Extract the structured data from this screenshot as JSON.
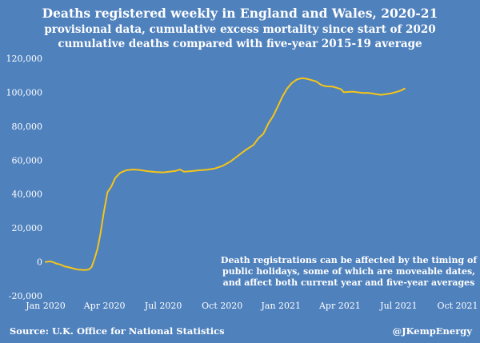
{
  "chart_data": {
    "type": "line",
    "title": "Deaths registered weekly in England and Wales, 2020-21",
    "subtitle_1": "provisional data, cumulative excess mortality since start of 2020",
    "subtitle_2": "cumulative deaths compared with five-year 2015-19 average",
    "ylim": [
      -20000,
      120000
    ],
    "y_ticks": [
      {
        "value": 120000,
        "label": "120,000"
      },
      {
        "value": 100000,
        "label": "100,000"
      },
      {
        "value": 80000,
        "label": "80,000"
      },
      {
        "value": 60000,
        "label": "60,000"
      },
      {
        "value": 40000,
        "label": "40,000"
      },
      {
        "value": 20000,
        "label": "20,000"
      },
      {
        "value": 0,
        "label": "0"
      },
      {
        "value": -20000,
        "label": "-20,000"
      }
    ],
    "x_range_months": [
      0,
      21
    ],
    "x_ticks": [
      {
        "value": 0,
        "label": "Jan 2020"
      },
      {
        "value": 3,
        "label": "Apr 2020"
      },
      {
        "value": 6,
        "label": "Jul 2020"
      },
      {
        "value": 9,
        "label": "Oct 2020"
      },
      {
        "value": 12,
        "label": "Jan 2021"
      },
      {
        "value": 15,
        "label": "Apr 2021"
      },
      {
        "value": 18,
        "label": "Jul 2021"
      },
      {
        "value": 21,
        "label": "Oct 2021"
      }
    ],
    "series": [
      {
        "name": "cumulative excess deaths",
        "color": "#f5c518",
        "points": [
          [
            0.0,
            0
          ],
          [
            0.25,
            300
          ],
          [
            0.4,
            -200
          ],
          [
            0.55,
            -1000
          ],
          [
            0.75,
            -1500
          ],
          [
            0.95,
            -2600
          ],
          [
            1.2,
            -3200
          ],
          [
            1.45,
            -4000
          ],
          [
            1.7,
            -4600
          ],
          [
            2.0,
            -4800
          ],
          [
            2.2,
            -4500
          ],
          [
            2.35,
            -3000
          ],
          [
            2.5,
            2000
          ],
          [
            2.65,
            8000
          ],
          [
            2.8,
            17000
          ],
          [
            2.95,
            28000
          ],
          [
            3.15,
            41000
          ],
          [
            3.35,
            44500
          ],
          [
            3.55,
            49500
          ],
          [
            3.8,
            52500
          ],
          [
            4.1,
            54000
          ],
          [
            4.45,
            54500
          ],
          [
            4.8,
            54200
          ],
          [
            5.2,
            53500
          ],
          [
            5.6,
            53000
          ],
          [
            6.0,
            52800
          ],
          [
            6.3,
            53200
          ],
          [
            6.6,
            53600
          ],
          [
            6.85,
            54500
          ],
          [
            7.05,
            53200
          ],
          [
            7.4,
            53500
          ],
          [
            7.8,
            54000
          ],
          [
            8.2,
            54300
          ],
          [
            8.6,
            55000
          ],
          [
            9.0,
            56500
          ],
          [
            9.4,
            59000
          ],
          [
            9.8,
            62500
          ],
          [
            10.2,
            66000
          ],
          [
            10.6,
            69000
          ],
          [
            10.85,
            73000
          ],
          [
            11.1,
            75500
          ],
          [
            11.35,
            81500
          ],
          [
            11.6,
            86000
          ],
          [
            11.85,
            92000
          ],
          [
            12.05,
            97000
          ],
          [
            12.3,
            102000
          ],
          [
            12.55,
            105500
          ],
          [
            12.8,
            107500
          ],
          [
            13.05,
            108300
          ],
          [
            13.3,
            108000
          ],
          [
            13.55,
            107200
          ],
          [
            13.8,
            106400
          ],
          [
            14.05,
            104300
          ],
          [
            14.3,
            103500
          ],
          [
            14.6,
            103400
          ],
          [
            14.85,
            102600
          ],
          [
            15.05,
            101900
          ],
          [
            15.2,
            100000
          ],
          [
            15.4,
            100200
          ],
          [
            15.65,
            100400
          ],
          [
            15.9,
            100000
          ],
          [
            16.15,
            99600
          ],
          [
            16.4,
            99700
          ],
          [
            16.65,
            99300
          ],
          [
            16.9,
            98800
          ],
          [
            17.1,
            98500
          ],
          [
            17.35,
            98900
          ],
          [
            17.6,
            99300
          ],
          [
            17.85,
            100100
          ],
          [
            18.1,
            101000
          ],
          [
            18.3,
            102200
          ]
        ]
      }
    ],
    "annotation_lines": [
      "Death registrations can be affected by the timing of",
      "public holidays, some of which are moveable dates,",
      "and affect both current year and five-year averages"
    ],
    "source": "Source: U.K. Office for National Statistics",
    "credit": "@JKempEnergy"
  }
}
